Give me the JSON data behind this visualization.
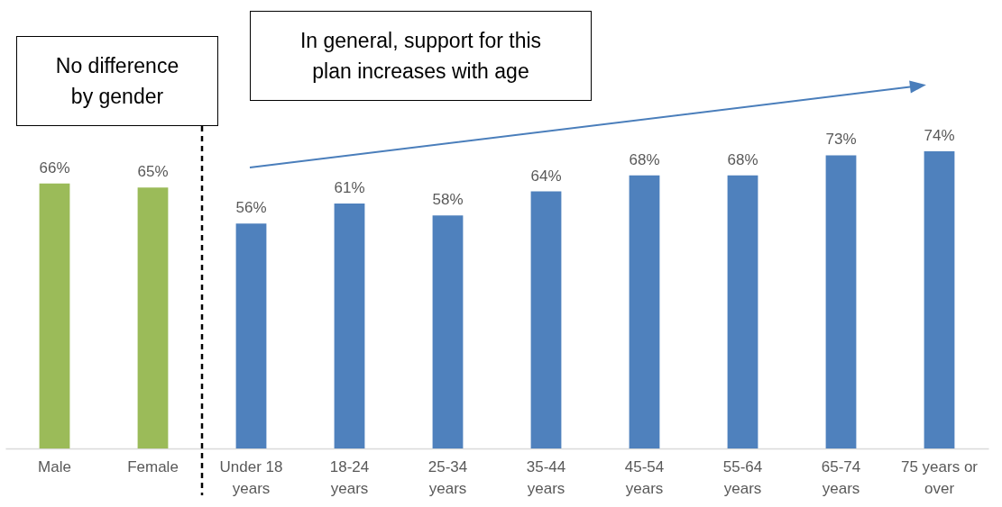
{
  "chart_data": {
    "type": "bar",
    "categories": [
      "Male",
      "Female",
      "Under 18 years",
      "18-24 years",
      "25-34 years",
      "35-44 years",
      "45-54 years",
      "55-64 years",
      "65-74 years",
      "75 years or over"
    ],
    "values": [
      66,
      65,
      56,
      61,
      58,
      64,
      68,
      68,
      73,
      74
    ],
    "colors": [
      "#9bbb59",
      "#9bbb59",
      "#4f81bd",
      "#4f81bd",
      "#4f81bd",
      "#4f81bd",
      "#4f81bd",
      "#4f81bd",
      "#4f81bd",
      "#4f81bd"
    ],
    "value_labels": [
      "66%",
      "65%",
      "56%",
      "61%",
      "58%",
      "64%",
      "68%",
      "68%",
      "73%",
      "74%"
    ],
    "annotations": [
      "No difference by gender",
      "In general, support for this plan increases with age"
    ]
  }
}
